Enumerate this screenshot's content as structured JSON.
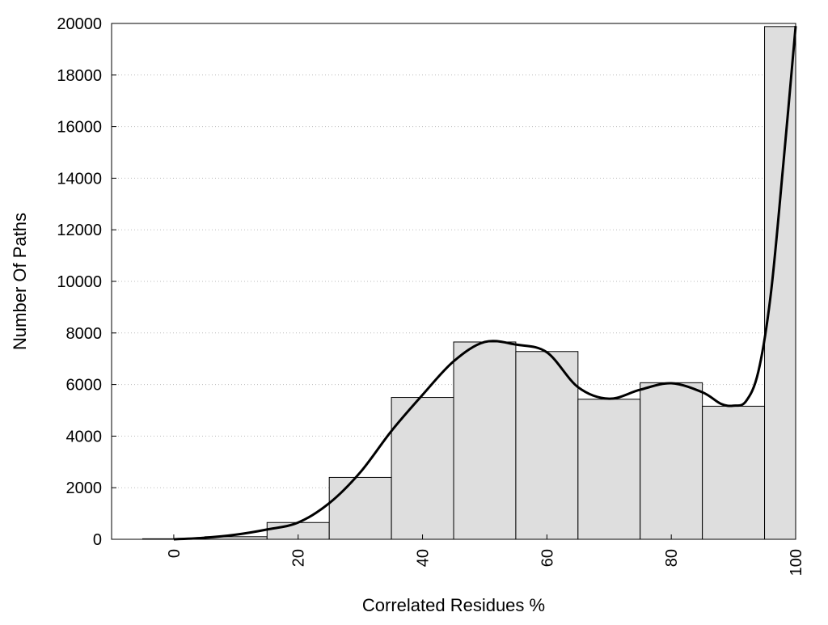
{
  "chart_data": {
    "type": "bar",
    "title": "",
    "xlabel": "Correlated Residues %",
    "ylabel": "Number Of Paths",
    "xlim": [
      -10,
      100
    ],
    "ylim": [
      0,
      20000
    ],
    "x_ticks": [
      0,
      20,
      40,
      60,
      80,
      100
    ],
    "y_ticks": [
      0,
      2000,
      4000,
      6000,
      8000,
      10000,
      12000,
      14000,
      16000,
      18000,
      20000
    ],
    "grid": "horizontal dotted",
    "bin_width": 10,
    "bins": [
      {
        "center": 0,
        "value": 20
      },
      {
        "center": 10,
        "value": 100
      },
      {
        "center": 20,
        "value": 650
      },
      {
        "center": 30,
        "value": 2400
      },
      {
        "center": 40,
        "value": 5500
      },
      {
        "center": 50,
        "value": 7650
      },
      {
        "center": 60,
        "value": 7280
      },
      {
        "center": 70,
        "value": 5430
      },
      {
        "center": 80,
        "value": 6070
      },
      {
        "center": 90,
        "value": 5160
      },
      {
        "center": 100,
        "value": 19880
      }
    ],
    "density_curve": {
      "x": [
        0,
        5,
        10,
        15,
        20,
        25,
        30,
        35,
        40,
        45,
        50,
        55,
        60,
        65,
        70,
        75,
        80,
        85,
        88,
        90,
        92,
        94,
        96,
        98,
        100
      ],
      "y": [
        0,
        60,
        180,
        380,
        650,
        1400,
        2600,
        4200,
        5600,
        6900,
        7650,
        7550,
        7250,
        5900,
        5450,
        5800,
        6050,
        5700,
        5250,
        5180,
        5350,
        6500,
        9500,
        14500,
        19900
      ]
    },
    "colors": {
      "bar_fill": "#dedede",
      "bar_stroke": "#000000",
      "curve": "#000000",
      "grid": "#bbbbbb"
    }
  }
}
